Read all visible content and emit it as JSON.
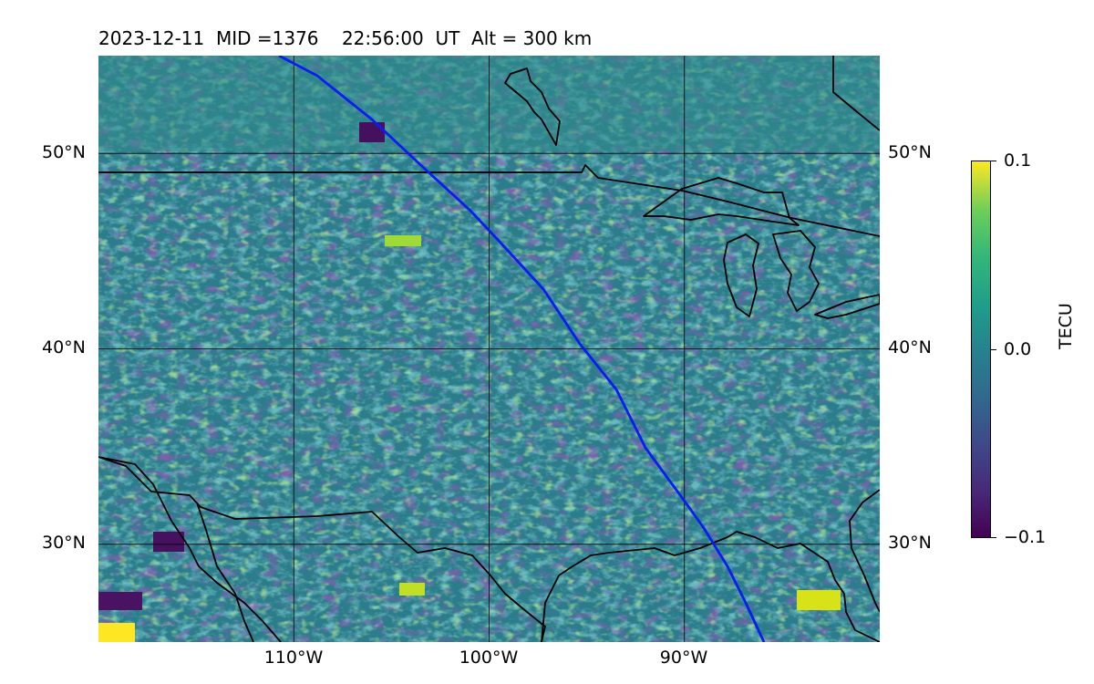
{
  "title": "2023-12-11  MID =1376    22:56:00  UT  Alt = 300 km",
  "map": {
    "lon_range": [
      -120,
      -80
    ],
    "lat_range": [
      25,
      55
    ],
    "lat_ticks": [
      {
        "value": 50,
        "label": "50°N"
      },
      {
        "value": 40,
        "label": "40°N"
      },
      {
        "value": 30,
        "label": "30°N"
      }
    ],
    "lon_ticks": [
      {
        "value": -110,
        "label": "110°W"
      },
      {
        "value": -100,
        "label": "100°W"
      },
      {
        "value": -90,
        "label": "90°W"
      }
    ],
    "gridlines": true,
    "satellite_track_color": "#0a1cf5"
  },
  "colorbar": {
    "label": "TECU",
    "min": -0.1,
    "max": 0.1,
    "tick_labels": [
      "0.1",
      "0.0",
      "−0.1"
    ],
    "colormap": "viridis"
  }
}
